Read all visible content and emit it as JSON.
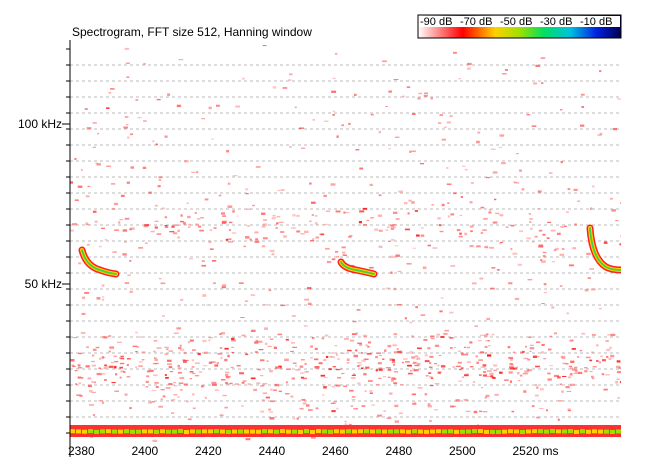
{
  "title": "Spectrogram, FFT size 512, Hanning window",
  "color_scale": {
    "labels": [
      "-90 dB",
      "-70 dB",
      "-50 dB",
      "-30 dB",
      "-10 dB"
    ]
  },
  "y_axis": {
    "labels": [
      "100 kHz",
      "50 kHz"
    ]
  },
  "x_axis": {
    "labels": [
      "2380",
      "2400",
      "2420",
      "2440",
      "2460",
      "2480",
      "2500",
      "2520 ms"
    ]
  }
}
